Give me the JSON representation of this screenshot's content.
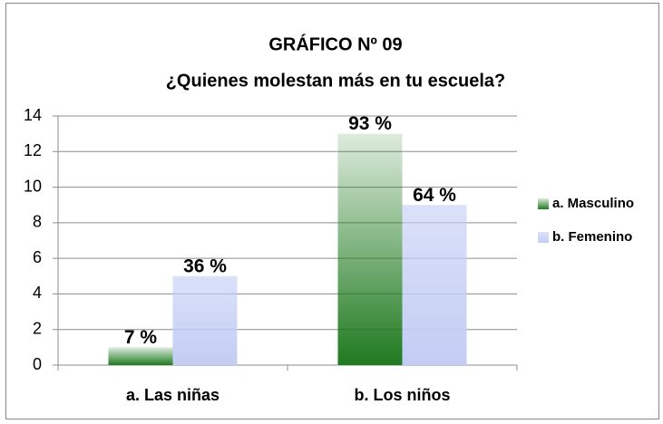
{
  "chart_data": {
    "type": "bar",
    "title": "GRÁFICO Nº 09",
    "subtitle": "¿Quienes molestan más en tu escuela?",
    "categories": [
      "a. Las niñas",
      "b. Los niños"
    ],
    "series": [
      {
        "name": "a. Masculino",
        "color": "#1f7a1f",
        "values": [
          1,
          13
        ],
        "percent_labels": [
          "7 %",
          "93 %"
        ]
      },
      {
        "name": "b. Femenino",
        "color": "#c3cdf4",
        "values": [
          5,
          9
        ],
        "percent_labels": [
          "36 %",
          "64 %"
        ]
      }
    ],
    "ylim": [
      0,
      14
    ],
    "yticks": [
      0,
      2,
      4,
      6,
      8,
      10,
      12,
      14
    ],
    "grid": true,
    "legend": "right"
  }
}
